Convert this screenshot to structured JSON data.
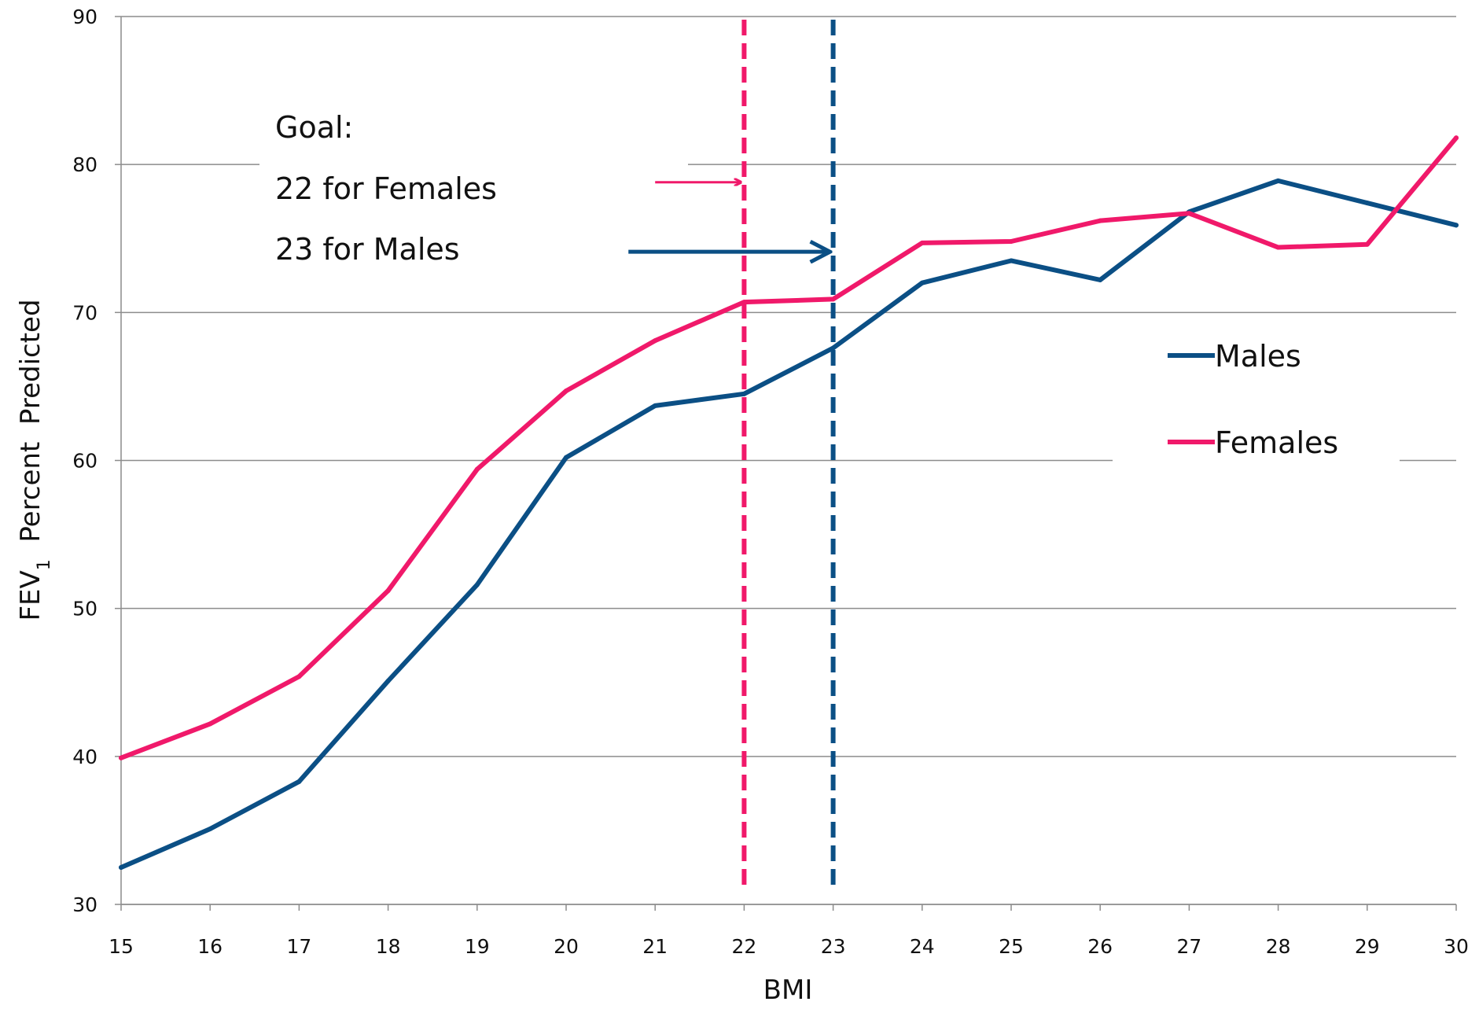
{
  "colors": {
    "males": "#0B4F85",
    "females": "#F0196A",
    "grid": "#8C8C8C",
    "axis": "#8C8C8C",
    "text": "#111111"
  },
  "annotation": {
    "line1": "Goal:",
    "line2": "22  for  Females",
    "line3": "23  for  Males"
  },
  "chart_data": {
    "type": "line",
    "xlabel": "BMI",
    "ylabel_main": "FEV",
    "ylabel_sub": "1",
    "ylabel_rest": "  Percent  Predicted",
    "xlim": [
      15,
      30
    ],
    "ylim": [
      30,
      90
    ],
    "x_ticks": [
      "15",
      "16",
      "17",
      "18",
      "19",
      "20",
      "21",
      "22",
      "23",
      "24",
      "25",
      "26",
      "27",
      "28",
      "29",
      "30"
    ],
    "y_ticks": [
      "30",
      "40",
      "50",
      "60",
      "70",
      "80",
      "90"
    ],
    "grid": "horizontal",
    "legend_position": "right",
    "series": [
      {
        "name": "Males",
        "color_key": "males",
        "x": [
          15,
          16,
          17,
          18,
          19,
          20,
          21,
          22,
          23,
          24,
          25,
          26,
          27,
          28,
          29,
          30
        ],
        "y": [
          32.5,
          35.1,
          38.3,
          45.1,
          51.6,
          60.2,
          63.7,
          64.5,
          67.6,
          72.0,
          73.5,
          72.2,
          76.8,
          78.9,
          77.4,
          75.9
        ]
      },
      {
        "name": "Females",
        "color_key": "females",
        "x": [
          15,
          16,
          17,
          18,
          19,
          20,
          21,
          22,
          23,
          24,
          25,
          26,
          27,
          28,
          29,
          30
        ],
        "y": [
          39.9,
          42.2,
          45.4,
          51.2,
          59.4,
          64.7,
          68.1,
          70.7,
          70.9,
          74.7,
          74.8,
          76.2,
          76.7,
          74.4,
          74.6,
          81.8
        ]
      }
    ],
    "goal_lines": [
      {
        "x": 22,
        "color_key": "females"
      },
      {
        "x": 23,
        "color_key": "males"
      }
    ],
    "arrows": [
      {
        "color_key": "females",
        "from_x": 21.0,
        "to_x": 22.0,
        "y": 78.8
      },
      {
        "color_key": "males",
        "from_x": 20.7,
        "to_x": 23.0,
        "y": 74.1
      }
    ]
  }
}
